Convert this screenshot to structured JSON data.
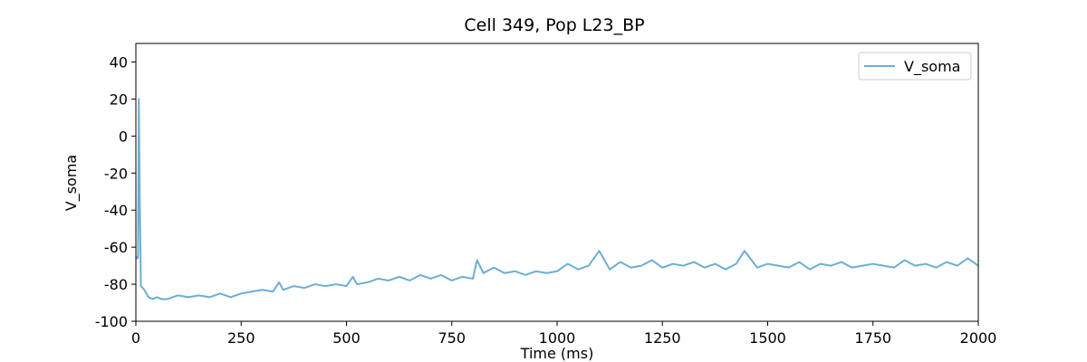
{
  "chart_data": {
    "type": "line",
    "title": "Cell 349, Pop L23_BP",
    "x_label": "Time (ms)",
    "y_label": "V_soma",
    "x": [
      0,
      2,
      5,
      7,
      9,
      12,
      20,
      30,
      40,
      50,
      60,
      75,
      100,
      125,
      150,
      175,
      200,
      225,
      250,
      275,
      300,
      325,
      340,
      350,
      375,
      400,
      425,
      450,
      475,
      500,
      515,
      525,
      550,
      575,
      600,
      625,
      650,
      675,
      700,
      725,
      750,
      775,
      800,
      810,
      825,
      850,
      875,
      900,
      925,
      950,
      975,
      1000,
      1025,
      1050,
      1075,
      1100,
      1110,
      1125,
      1150,
      1175,
      1200,
      1225,
      1250,
      1275,
      1300,
      1325,
      1350,
      1375,
      1400,
      1425,
      1445,
      1475,
      1500,
      1525,
      1550,
      1575,
      1600,
      1625,
      1650,
      1675,
      1700,
      1725,
      1750,
      1775,
      1800,
      1825,
      1850,
      1875,
      1900,
      1925,
      1950,
      1975,
      2000
    ],
    "series": [
      {
        "name": "V_soma",
        "color": "#6baed6",
        "values": [
          -65,
          -66,
          -66,
          20,
          -30,
          -81,
          -83,
          -87,
          -88,
          -87,
          -88,
          -88,
          -86,
          -87,
          -86,
          -87,
          -85,
          -87,
          -85,
          -84,
          -83,
          -84,
          -79,
          -83,
          -81,
          -82,
          -80,
          -81,
          -80,
          -81,
          -76,
          -80,
          -79,
          -77,
          -78,
          -76,
          -78,
          -75,
          -77,
          -75,
          -78,
          -76,
          -77,
          -67,
          -74,
          -71,
          -74,
          -73,
          -75,
          -73,
          -74,
          -73,
          -69,
          -72,
          -70,
          -62,
          -66,
          -72,
          -68,
          -71,
          -70,
          -67,
          -71,
          -69,
          -70,
          -68,
          -71,
          -69,
          -72,
          -69,
          -62,
          -71,
          -69,
          -70,
          -71,
          -68,
          -72,
          -69,
          -70,
          -68,
          -71,
          -70,
          -69,
          -70,
          -71,
          -67,
          -70,
          -69,
          -71,
          -68,
          -70,
          -66,
          -70
        ]
      }
    ],
    "xlim": [
      0,
      2000
    ],
    "ylim": [
      -100,
      50
    ],
    "xticks": [
      0,
      250,
      500,
      750,
      1000,
      1250,
      1500,
      1750,
      2000
    ],
    "yticks": [
      -100,
      -80,
      -60,
      -40,
      -20,
      0,
      20,
      40
    ],
    "legend": "upper right"
  }
}
